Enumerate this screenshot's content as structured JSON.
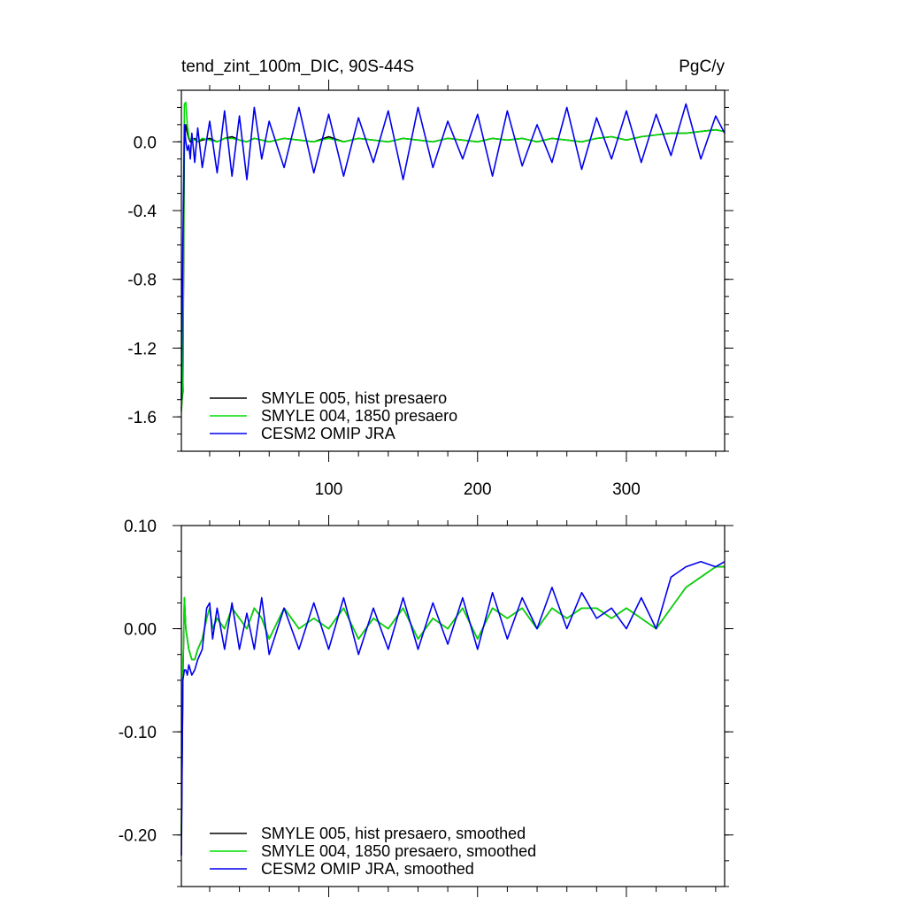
{
  "chart_data": [
    {
      "type": "line",
      "title": "tend_zint_100m_DIC, 90S-44S",
      "units": "PgC/y",
      "xlim": [
        1,
        366
      ],
      "ylim": [
        -1.8,
        0.3
      ],
      "xticks": [
        100,
        200,
        300
      ],
      "xtick_labels": [
        "100",
        "200",
        "300"
      ],
      "yticks": [
        0.0,
        -0.4,
        -0.8,
        -1.2,
        -1.6
      ],
      "ytick_labels": [
        "0.0",
        "-0.4",
        "-0.8",
        "-1.2",
        "-1.6"
      ],
      "legend_position": "lower-left",
      "series": [
        {
          "name": "SMYLE 005, hist presaero",
          "color": "#000000",
          "x": [
            1,
            2,
            3,
            4,
            5,
            6,
            7,
            8,
            10,
            12,
            15,
            20,
            25,
            30,
            35,
            40,
            45,
            50,
            55,
            60,
            70,
            80,
            90,
            100,
            110,
            120,
            130,
            140,
            150,
            160,
            170,
            180,
            190,
            200,
            210,
            220,
            230,
            240,
            250,
            260,
            270,
            280,
            290,
            300,
            310,
            320,
            330,
            340,
            350,
            360,
            366
          ],
          "y": [
            -1.55,
            -1.45,
            0.02,
            0.1,
            0.05,
            0.02,
            0.0,
            0.01,
            0.02,
            0.0,
            0.01,
            0.02,
            0.0,
            0.02,
            0.03,
            0.01,
            0.0,
            0.02,
            0.01,
            0.0,
            0.02,
            0.01,
            0.0,
            0.03,
            0.0,
            0.02,
            0.01,
            0.0,
            0.02,
            0.01,
            0.0,
            0.02,
            0.01,
            0.0,
            0.02,
            0.01,
            0.02,
            0.0,
            0.02,
            0.01,
            0.0,
            0.02,
            0.03,
            0.01,
            0.03,
            0.04,
            0.05,
            0.05,
            0.06,
            0.07,
            0.06
          ]
        },
        {
          "name": "SMYLE 004, 1850 presaero",
          "color": "#00dd00",
          "x": [
            1,
            2,
            3,
            4,
            5,
            6,
            7,
            8,
            10,
            12,
            15,
            20,
            25,
            30,
            35,
            40,
            45,
            50,
            55,
            60,
            70,
            80,
            90,
            100,
            110,
            120,
            130,
            140,
            150,
            160,
            170,
            180,
            190,
            200,
            210,
            220,
            230,
            240,
            250,
            260,
            270,
            280,
            290,
            300,
            310,
            320,
            330,
            340,
            350,
            360,
            366
          ],
          "y": [
            -1.57,
            -1.4,
            0.22,
            0.23,
            0.1,
            0.03,
            0.01,
            0.02,
            0.01,
            0.0,
            0.02,
            0.01,
            0.0,
            0.02,
            0.02,
            0.01,
            0.0,
            0.02,
            0.01,
            0.0,
            0.02,
            0.01,
            0.0,
            0.02,
            0.0,
            0.02,
            0.01,
            0.0,
            0.02,
            0.01,
            0.0,
            0.02,
            0.01,
            0.0,
            0.02,
            0.01,
            0.02,
            0.0,
            0.02,
            0.01,
            0.0,
            0.02,
            0.03,
            0.01,
            0.03,
            0.04,
            0.05,
            0.05,
            0.06,
            0.07,
            0.06
          ]
        },
        {
          "name": "CESM2 OMIP JRA",
          "color": "#0000ee",
          "x": [
            1,
            2,
            3,
            4,
            5,
            6,
            7,
            8,
            10,
            12,
            15,
            20,
            25,
            30,
            35,
            40,
            45,
            50,
            55,
            60,
            70,
            80,
            90,
            100,
            110,
            120,
            130,
            140,
            150,
            160,
            170,
            180,
            190,
            200,
            210,
            220,
            230,
            240,
            250,
            260,
            270,
            280,
            290,
            300,
            310,
            320,
            330,
            340,
            350,
            360,
            366
          ],
          "y": [
            -1.5,
            -0.6,
            0.1,
            0.0,
            -0.05,
            -0.02,
            -0.1,
            0.05,
            -0.12,
            0.08,
            -0.15,
            0.12,
            -0.18,
            0.18,
            -0.2,
            0.15,
            -0.22,
            0.2,
            -0.1,
            0.12,
            -0.15,
            0.2,
            -0.18,
            0.16,
            -0.2,
            0.14,
            -0.12,
            0.18,
            -0.22,
            0.2,
            -0.15,
            0.12,
            -0.1,
            0.16,
            -0.2,
            0.18,
            -0.14,
            0.1,
            -0.12,
            0.2,
            -0.16,
            0.14,
            -0.1,
            0.18,
            -0.12,
            0.16,
            -0.08,
            0.22,
            -0.1,
            0.15,
            0.05
          ]
        }
      ]
    },
    {
      "type": "line",
      "title": "",
      "xlim": [
        1,
        366
      ],
      "ylim": [
        -0.25,
        0.1
      ],
      "xticks": [
        100,
        200,
        300
      ],
      "yticks": [
        0.1,
        0.0,
        -0.1,
        -0.2
      ],
      "ytick_labels": [
        "0.10",
        "0.00",
        "-0.10",
        "-0.20"
      ],
      "legend_position": "lower-left",
      "series": [
        {
          "name": "SMYLE 005, hist presaero, smoothed",
          "color": "#000000",
          "x": [
            1,
            2,
            3,
            4,
            5,
            6,
            8,
            10,
            12,
            15,
            18,
            20,
            22,
            25,
            30,
            35,
            40,
            45,
            50,
            55,
            60,
            70,
            80,
            90,
            100,
            110,
            120,
            130,
            140,
            150,
            160,
            170,
            180,
            190,
            200,
            210,
            220,
            230,
            240,
            250,
            260,
            270,
            280,
            290,
            300,
            310,
            320,
            330,
            340,
            350,
            360,
            366
          ],
          "y": [
            -0.2,
            -0.05,
            0.03,
            0.0,
            -0.01,
            -0.02,
            -0.03,
            -0.03,
            -0.02,
            -0.01,
            0.01,
            0.02,
            0.0,
            0.01,
            0.0,
            0.02,
            0.01,
            0.0,
            0.02,
            0.01,
            -0.01,
            0.02,
            0.0,
            0.01,
            0.0,
            0.02,
            -0.01,
            0.01,
            0.0,
            0.02,
            -0.01,
            0.01,
            0.0,
            0.02,
            -0.01,
            0.02,
            0.01,
            0.02,
            0.0,
            0.02,
            0.01,
            0.02,
            0.02,
            0.01,
            0.02,
            0.01,
            0.0,
            0.02,
            0.04,
            0.05,
            0.06,
            0.06
          ]
        },
        {
          "name": "SMYLE 004, 1850 presaero, smoothed",
          "color": "#00dd00",
          "x": [
            1,
            2,
            3,
            4,
            5,
            6,
            8,
            10,
            12,
            15,
            18,
            20,
            22,
            25,
            30,
            35,
            40,
            45,
            50,
            55,
            60,
            70,
            80,
            90,
            100,
            110,
            120,
            130,
            140,
            150,
            160,
            170,
            180,
            190,
            200,
            210,
            220,
            230,
            240,
            250,
            260,
            270,
            280,
            290,
            300,
            310,
            320,
            330,
            340,
            350,
            360,
            366
          ],
          "y": [
            -0.2,
            -0.04,
            0.03,
            0.0,
            -0.01,
            -0.02,
            -0.03,
            -0.03,
            -0.02,
            -0.01,
            0.01,
            0.02,
            0.0,
            0.01,
            0.0,
            0.02,
            0.01,
            0.0,
            0.02,
            0.01,
            -0.01,
            0.02,
            0.0,
            0.01,
            0.0,
            0.02,
            -0.01,
            0.01,
            0.0,
            0.02,
            -0.01,
            0.01,
            0.0,
            0.02,
            -0.01,
            0.02,
            0.01,
            0.02,
            0.0,
            0.02,
            0.01,
            0.02,
            0.02,
            0.01,
            0.02,
            0.01,
            0.0,
            0.02,
            0.04,
            0.05,
            0.06,
            0.06
          ]
        },
        {
          "name": "CESM2 OMIP JRA, smoothed",
          "color": "#0000ee",
          "x": [
            1,
            2,
            3,
            4,
            5,
            6,
            8,
            10,
            12,
            15,
            18,
            20,
            22,
            25,
            30,
            35,
            40,
            45,
            50,
            55,
            60,
            70,
            80,
            90,
            100,
            110,
            120,
            130,
            140,
            150,
            160,
            170,
            180,
            190,
            200,
            210,
            220,
            230,
            240,
            250,
            260,
            270,
            280,
            290,
            300,
            310,
            320,
            330,
            340,
            350,
            360,
            366
          ],
          "y": [
            -0.22,
            -0.05,
            -0.04,
            -0.04,
            -0.045,
            -0.035,
            -0.045,
            -0.04,
            -0.03,
            -0.02,
            0.02,
            0.025,
            -0.01,
            0.02,
            -0.02,
            0.025,
            -0.02,
            0.015,
            -0.02,
            0.03,
            -0.025,
            0.02,
            -0.02,
            0.025,
            -0.02,
            0.03,
            -0.025,
            0.02,
            -0.02,
            0.03,
            -0.02,
            0.025,
            -0.015,
            0.03,
            -0.02,
            0.035,
            -0.01,
            0.03,
            0.0,
            0.04,
            0.0,
            0.035,
            0.01,
            0.02,
            0.0,
            0.03,
            0.0,
            0.05,
            0.06,
            0.065,
            0.06,
            0.065
          ]
        }
      ]
    }
  ]
}
